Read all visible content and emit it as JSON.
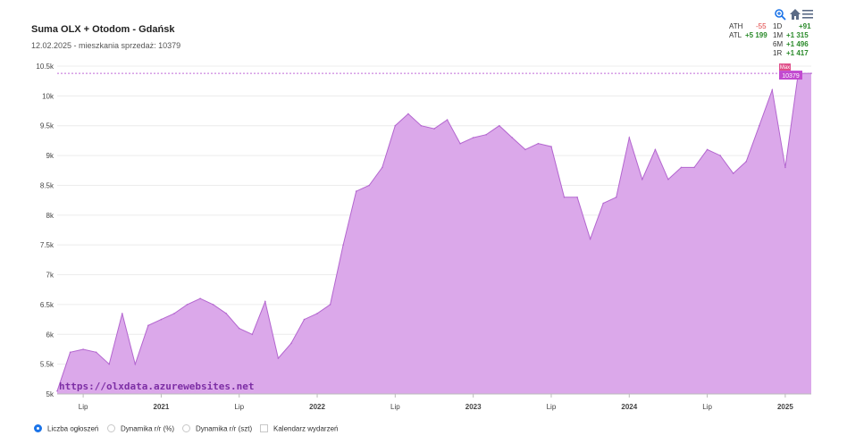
{
  "chart_data": {
    "type": "area",
    "title": "Suma OLX + Otodom - Gdańsk",
    "subtitle": "12.02.2025 - mieszkania sprzedaż: 10379",
    "x_start": "2020-05",
    "x_end": "2025-03",
    "ylim": [
      5000,
      10500
    ],
    "y_ticks": [
      "5k",
      "5.5k",
      "6k",
      "6.5k",
      "7k",
      "7.5k",
      "8k",
      "8.5k",
      "9k",
      "9.5k",
      "10k",
      "10.5k"
    ],
    "y_tick_values": [
      5000,
      5500,
      6000,
      6500,
      7000,
      7500,
      8000,
      8500,
      9000,
      9500,
      10000,
      10500
    ],
    "x_ticks": [
      {
        "date": "2020-07",
        "label": "Lip",
        "year": false
      },
      {
        "date": "2021-01",
        "label": "2021",
        "year": true
      },
      {
        "date": "2021-07",
        "label": "Lip",
        "year": false
      },
      {
        "date": "2022-01",
        "label": "2022",
        "year": true
      },
      {
        "date": "2022-07",
        "label": "Lip",
        "year": false
      },
      {
        "date": "2023-01",
        "label": "2023",
        "year": true
      },
      {
        "date": "2023-07",
        "label": "Lip",
        "year": false
      },
      {
        "date": "2024-01",
        "label": "2024",
        "year": true
      },
      {
        "date": "2024-07",
        "label": "Lip",
        "year": false
      },
      {
        "date": "2025-01",
        "label": "2025",
        "year": true
      }
    ],
    "series": [
      {
        "color": "#dba8ea",
        "line_color": "#b366cf",
        "points": [
          [
            "2020-05",
            5050
          ],
          [
            "2020-06",
            5700
          ],
          [
            "2020-07",
            5750
          ],
          [
            "2020-08",
            5700
          ],
          [
            "2020-09",
            5500
          ],
          [
            "2020-10",
            6350
          ],
          [
            "2020-11",
            5500
          ],
          [
            "2020-12",
            6150
          ],
          [
            "2021-01",
            6250
          ],
          [
            "2021-02",
            6350
          ],
          [
            "2021-03",
            6500
          ],
          [
            "2021-04",
            6600
          ],
          [
            "2021-05",
            6500
          ],
          [
            "2021-06",
            6350
          ],
          [
            "2021-07",
            6100
          ],
          [
            "2021-08",
            6000
          ],
          [
            "2021-09",
            6550
          ],
          [
            "2021-10",
            5600
          ],
          [
            "2021-11",
            5850
          ],
          [
            "2021-12",
            6250
          ],
          [
            "2022-01",
            6350
          ],
          [
            "2022-02",
            6500
          ],
          [
            "2022-03",
            7500
          ],
          [
            "2022-04",
            8400
          ],
          [
            "2022-05",
            8500
          ],
          [
            "2022-06",
            8800
          ],
          [
            "2022-07",
            9500
          ],
          [
            "2022-08",
            9700
          ],
          [
            "2022-09",
            9500
          ],
          [
            "2022-10",
            9450
          ],
          [
            "2022-11",
            9600
          ],
          [
            "2022-12",
            9200
          ],
          [
            "2023-01",
            9300
          ],
          [
            "2023-02",
            9350
          ],
          [
            "2023-03",
            9500
          ],
          [
            "2023-04",
            9300
          ],
          [
            "2023-05",
            9100
          ],
          [
            "2023-06",
            9200
          ],
          [
            "2023-07",
            9150
          ],
          [
            "2023-08",
            8300
          ],
          [
            "2023-09",
            8300
          ],
          [
            "2023-10",
            7600
          ],
          [
            "2023-11",
            8200
          ],
          [
            "2023-12",
            8300
          ],
          [
            "2024-01",
            9300
          ],
          [
            "2024-02",
            8600
          ],
          [
            "2024-03",
            9100
          ],
          [
            "2024-04",
            8600
          ],
          [
            "2024-05",
            8800
          ],
          [
            "2024-06",
            8800
          ],
          [
            "2024-07",
            9100
          ],
          [
            "2024-08",
            9000
          ],
          [
            "2024-09",
            8700
          ],
          [
            "2024-10",
            8900
          ],
          [
            "2024-11",
            9500
          ],
          [
            "2024-12",
            10100
          ],
          [
            "2025-01",
            8800
          ],
          [
            "2025-02",
            10379
          ],
          [
            "2025-03",
            10379
          ]
        ]
      }
    ],
    "ath_line": 10379,
    "max_marker": "Max",
    "current_value_label": "10379",
    "watermark": "https://olxdata.azurewebsites.net",
    "grid": "horizontal",
    "legend_placement": "bottom-left"
  },
  "stats": {
    "ath_label": "ATH",
    "ath_value": "-55",
    "atl_label": "ATL",
    "atl_value": "+5 199",
    "d1_label": "1D",
    "d1_value": "+91",
    "m1_label": "1M",
    "m1_value": "+1 315",
    "m6_label": "6M",
    "m6_value": "+1 496",
    "r1_label": "1R",
    "r1_value": "+1 417"
  },
  "toolbar": {
    "zoom_icon": "zoom-in-icon",
    "home_icon": "home-icon",
    "menu_icon": "menu-icon"
  },
  "legend": {
    "opt1": "Liczba ogłoszeń",
    "opt2": "Dynamika r/r (%)",
    "opt3": "Dynamika r/r (szt)",
    "opt4": "Kalendarz wydarzeń"
  }
}
